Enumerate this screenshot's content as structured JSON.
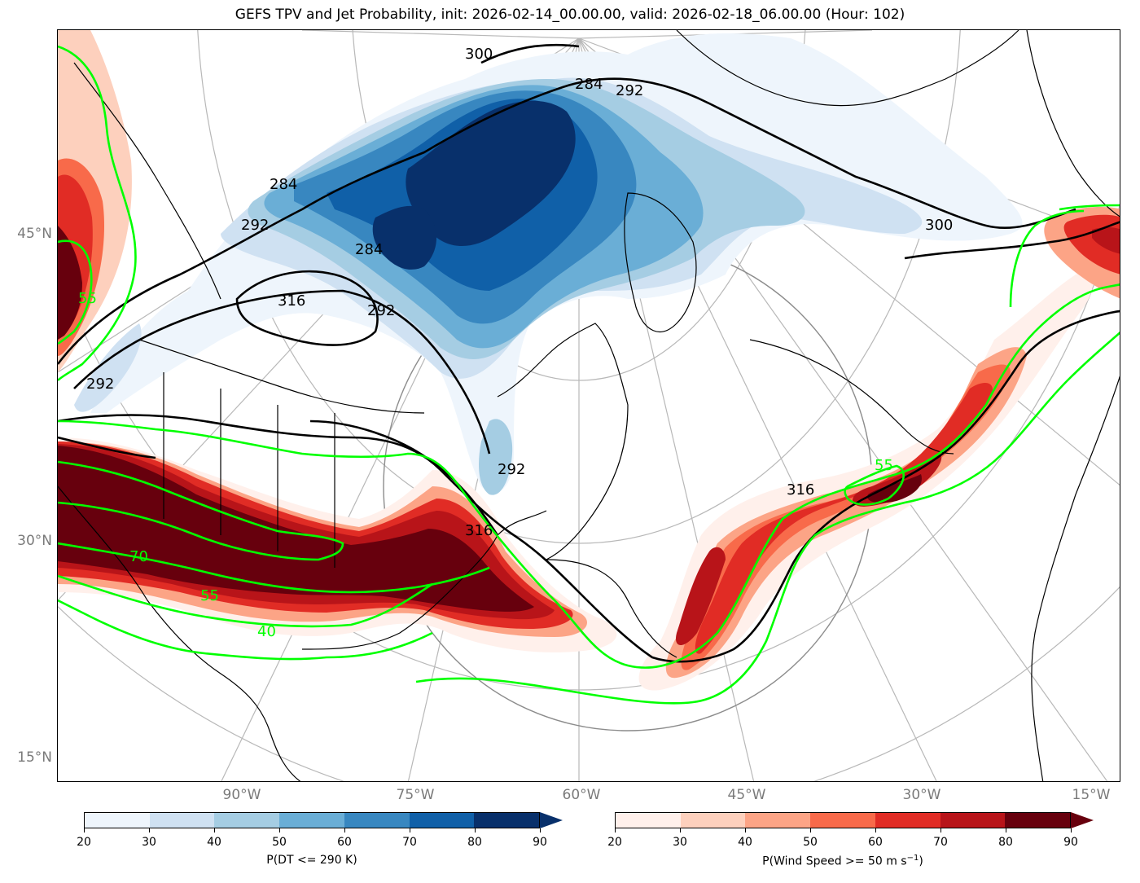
{
  "title": "GEFS TPV and Jet Probability, init: 2026-02-14_00.00.00, valid: 2026-02-18_06.00.00 (Hour: 102)",
  "axes": {
    "lat_labels": [
      "45°N",
      "30°N",
      "15°N"
    ],
    "lon_labels": [
      "90°W",
      "75°W",
      "60°W",
      "45°W",
      "30°W",
      "15°W"
    ]
  },
  "contour_labels": {
    "theta": [
      "284",
      "292",
      "292",
      "284",
      "292",
      "292",
      "300",
      "292",
      "316",
      "316",
      "316",
      "284",
      "300"
    ],
    "wind": [
      "55",
      "70",
      "55",
      "40",
      "55"
    ]
  },
  "colors": {
    "blues": [
      "#eef5fc",
      "#cfe1f2",
      "#a5cde3",
      "#6aaed6",
      "#3887c0",
      "#1060a8",
      "#08306b"
    ],
    "reds": [
      "#fff0eb",
      "#fdd0bd",
      "#fca486",
      "#f86a4a",
      "#e12c25",
      "#b81419",
      "#67000d"
    ],
    "wind_contour": "#00ff00",
    "theta_contour": "#000000",
    "grid": "#b0b0b0"
  },
  "colorbars": [
    {
      "name": "P(DT <= 290 K)",
      "label": "P(DT <= 290 K)",
      "ticks": [
        "20",
        "30",
        "40",
        "50",
        "60",
        "70",
        "80",
        "90"
      ],
      "colormap": "blues",
      "extend": "max"
    },
    {
      "name": "P(Wind Speed >= 50 m s^-1)",
      "label_prefix": "P(Wind Speed >= 50 m s",
      "label_superscript": "−1",
      "label_suffix": ")",
      "ticks": [
        "20",
        "30",
        "40",
        "50",
        "60",
        "70",
        "80",
        "90"
      ],
      "colormap": "reds",
      "extend": "max"
    }
  ]
}
